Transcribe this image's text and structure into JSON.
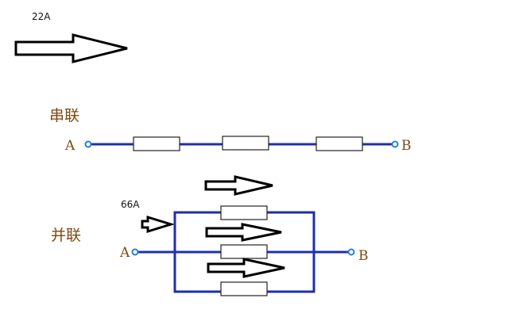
{
  "labels": {
    "current_top": "22A",
    "current_parallel": "66A",
    "series_title": "串联",
    "parallel_title": "并联",
    "node_a": "A",
    "node_b": "B"
  },
  "colors": {
    "wire": "#1f2fa8",
    "terminal": "#2a7fd4",
    "chinese_label": "#7a4a12",
    "arrow_outline": "#000000"
  },
  "series_circuit": {
    "resistor_count": 3
  },
  "parallel_circuit": {
    "branch_count": 3
  }
}
